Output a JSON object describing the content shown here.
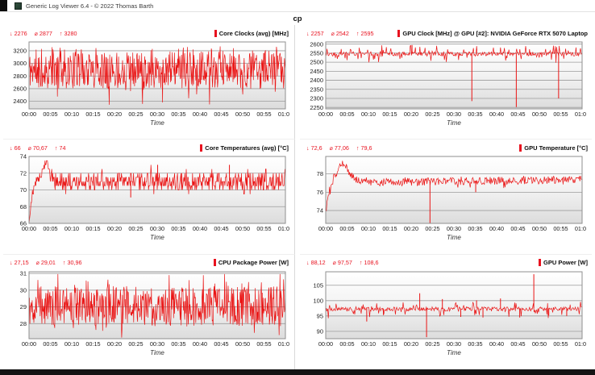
{
  "window": {
    "title": "Generic Log Viewer 6.4 - © 2022 Thomas Barth",
    "file_label": "cp"
  },
  "glyphs": {
    "min": "↓",
    "avg": "⌀",
    "max": "↑"
  },
  "colors": {
    "series": "#ea1414",
    "stats_text": "#e8121f",
    "legend_marker": "#e8121f",
    "grid_line": "#9c9c9c",
    "plot_border": "#8f8f8f",
    "plot_bg_top": "#ffffff",
    "plot_bg_bottom": "#dcdcdc",
    "tick_text": "#1c1c1c",
    "axis_label_text": "#333333"
  },
  "chart_data": [
    {
      "type": "line",
      "title": "Core Clocks (avg) [MHz]",
      "stats": {
        "min": "2276",
        "avg": "2877",
        "max": "3280"
      },
      "yticks": [
        2400,
        2600,
        2800,
        3000,
        3200
      ],
      "ylim": [
        2280,
        3340
      ],
      "x_ticks": [
        "00:00",
        "00:05",
        "00:10",
        "00:15",
        "00:20",
        "00:25",
        "00:30",
        "00:35",
        "00:40",
        "00:45",
        "00:50",
        "00:55",
        "01:00"
      ],
      "xlabel": "Time",
      "render": {
        "seed": 11,
        "step": 0.55,
        "base": [
          [
            0,
            2900
          ],
          [
            60,
            2900
          ]
        ],
        "noise_up": 290,
        "noise_down": 295,
        "dip_prob": 0.018,
        "dip_extra": 300,
        "spike_prob": 0.03,
        "spike_extra": 95,
        "clamp": [
          2276,
          3280
        ],
        "spikes": []
      }
    },
    {
      "type": "line",
      "title": "GPU Clock [MHz] @ GPU [#2]: NVIDIA GeForce RTX 5070 Laptop",
      "stats": {
        "min": "2257",
        "avg": "2542",
        "max": "2595"
      },
      "yticks": [
        2250,
        2300,
        2350,
        2400,
        2450,
        2500,
        2550,
        2600
      ],
      "ylim": [
        2242,
        2612
      ],
      "x_ticks": [
        "00:00",
        "00:05",
        "00:10",
        "00:15",
        "00:20",
        "00:25",
        "00:30",
        "00:35",
        "00:40",
        "00:45",
        "00:50",
        "00:55",
        "01:00"
      ],
      "xlabel": "Time",
      "render": {
        "seed": 22,
        "step": 0.8,
        "base": [
          [
            0,
            2552
          ],
          [
            60,
            2550
          ]
        ],
        "noise_up": 6,
        "noise_down": 16,
        "dip_prob": 0.1,
        "dip_extra": 40,
        "spike_prob": 0.14,
        "spike_extra": 36,
        "clamp": [
          2250,
          2595
        ],
        "spikes": [
          [
            20.2,
            2595
          ],
          [
            34.2,
            2285
          ],
          [
            44.6,
            2252
          ],
          [
            54.5,
            2300
          ]
        ]
      }
    },
    {
      "type": "line",
      "title": "Core Temperatures (avg) [°C]",
      "stats": {
        "min": "66",
        "avg": "70,67",
        "max": "74"
      },
      "yticks": [
        66,
        68,
        70,
        72,
        74
      ],
      "ylim": [
        66,
        74
      ],
      "x_ticks": [
        "00:00",
        "00:05",
        "00:10",
        "00:15",
        "00:20",
        "00:25",
        "00:30",
        "00:35",
        "00:40",
        "00:45",
        "00:50",
        "00:55",
        "01:00"
      ],
      "xlabel": "Time",
      "render": {
        "seed": 33,
        "step": 0.6,
        "base": [
          [
            0,
            66
          ],
          [
            0.7,
            69.3
          ],
          [
            1.4,
            70.6
          ],
          [
            2.1,
            71.3
          ],
          [
            2.7,
            71.4
          ],
          [
            3.1,
            72.6
          ],
          [
            3.5,
            72.1
          ],
          [
            3.9,
            73.6
          ],
          [
            4.3,
            72.6
          ],
          [
            4.9,
            71.9
          ],
          [
            6,
            71.1
          ],
          [
            60,
            71.1
          ]
        ],
        "noise_up": [
          [
            0,
            0.3
          ],
          [
            4.5,
            0.8
          ],
          [
            60,
            0.9
          ]
        ],
        "noise_down": [
          [
            0,
            0.3
          ],
          [
            4.5,
            0.7
          ],
          [
            7,
            1.1
          ],
          [
            60,
            1.1
          ]
        ],
        "quant": 0.5,
        "dip_prob": 0.012,
        "dip_extra": 0.9,
        "spike_prob": 0.015,
        "spike_extra": 0.9,
        "clamp": [
          66,
          74
        ],
        "spikes": [
          [
            23.8,
            69.1
          ],
          [
            30.1,
            73
          ],
          [
            46.9,
            73
          ]
        ]
      }
    },
    {
      "type": "line",
      "title": "GPU Temperature [°C]",
      "stats": {
        "min": "72,6",
        "avg": "77,06",
        "max": "79,6"
      },
      "yticks": [
        74,
        76,
        78
      ],
      "ylim": [
        72.6,
        79.9
      ],
      "x_ticks": [
        "00:00",
        "00:05",
        "00:10",
        "00:15",
        "00:20",
        "00:25",
        "00:30",
        "00:35",
        "00:40",
        "00:45",
        "00:50",
        "00:55",
        "01:00"
      ],
      "xlabel": "Time",
      "render": {
        "seed": 44,
        "step": 0.8,
        "base": [
          [
            0,
            73.9
          ],
          [
            0.4,
            75.2
          ],
          [
            0.9,
            76.2
          ],
          [
            1.6,
            77.2
          ],
          [
            2.4,
            78.1
          ],
          [
            3.2,
            78.7
          ],
          [
            3.9,
            79.2
          ],
          [
            4.3,
            79.3
          ],
          [
            4.9,
            78.6
          ],
          [
            5.6,
            78.1
          ],
          [
            6.6,
            77.6
          ],
          [
            8.5,
            77.2
          ],
          [
            12,
            77.1
          ],
          [
            60,
            77.4
          ]
        ],
        "noise_up": 0.4,
        "noise_down": 0.45,
        "dip_prob": 0.01,
        "dip_extra": 0.5,
        "spike_prob": 0.012,
        "spike_extra": 0.4,
        "clamp": [
          72.6,
          79.6
        ],
        "spikes": [
          [
            24.4,
            72.6
          ],
          [
            35.1,
            76.0
          ]
        ]
      }
    },
    {
      "type": "line",
      "title": "CPU Package Power [W]",
      "stats": {
        "min": "27,15",
        "avg": "29,01",
        "max": "30,96"
      },
      "yticks": [
        28,
        29,
        30,
        31
      ],
      "ylim": [
        27.1,
        31.1
      ],
      "x_ticks": [
        "00:00",
        "00:05",
        "00:10",
        "00:15",
        "00:20",
        "00:25",
        "00:30",
        "00:35",
        "00:40",
        "00:45",
        "00:50",
        "00:55",
        "01:00"
      ],
      "xlabel": "Time",
      "render": {
        "seed": 55,
        "step": 0.55,
        "base": [
          [
            0,
            29.05
          ],
          [
            60,
            29.05
          ]
        ],
        "noise_up": 1.2,
        "noise_down": 1.2,
        "dip_prob": 0.02,
        "dip_extra": 0.7,
        "spike_prob": 0.025,
        "spike_extra": 0.8,
        "clamp": [
          27.15,
          30.96
        ],
        "spikes": []
      }
    },
    {
      "type": "line",
      "title": "GPU Power [W]",
      "stats": {
        "min": "88,12",
        "avg": "97,57",
        "max": "108,6"
      },
      "yticks": [
        90,
        95,
        100,
        105
      ],
      "ylim": [
        87.6,
        109.4
      ],
      "x_ticks": [
        "00:00",
        "00:05",
        "00:10",
        "00:15",
        "00:20",
        "00:25",
        "00:30",
        "00:35",
        "00:40",
        "00:45",
        "00:50",
        "00:55",
        "01:00"
      ],
      "xlabel": "Time",
      "render": {
        "seed": 66,
        "step": 0.8,
        "base": [
          [
            0,
            97.4
          ],
          [
            60,
            97.5
          ]
        ],
        "noise_up": 0.5,
        "noise_down": 0.8,
        "dip_prob": 0.05,
        "dip_extra": 2.4,
        "spike_prob": 0.05,
        "spike_extra": 1.6,
        "clamp": [
          88.12,
          108.6
        ],
        "spikes": [
          [
            9.6,
            93.2
          ],
          [
            13.5,
            95.3
          ],
          [
            22.0,
            102.4
          ],
          [
            23.6,
            88.1
          ],
          [
            27.3,
            100.5
          ],
          [
            31.6,
            94.7
          ],
          [
            35.3,
            100.1
          ],
          [
            36.8,
            94.5
          ],
          [
            40.9,
            100.7
          ],
          [
            45.4,
            94.5
          ],
          [
            48.7,
            108.6
          ],
          [
            52.2,
            95.2
          ],
          [
            56.4,
            95.0
          ]
        ]
      }
    }
  ]
}
